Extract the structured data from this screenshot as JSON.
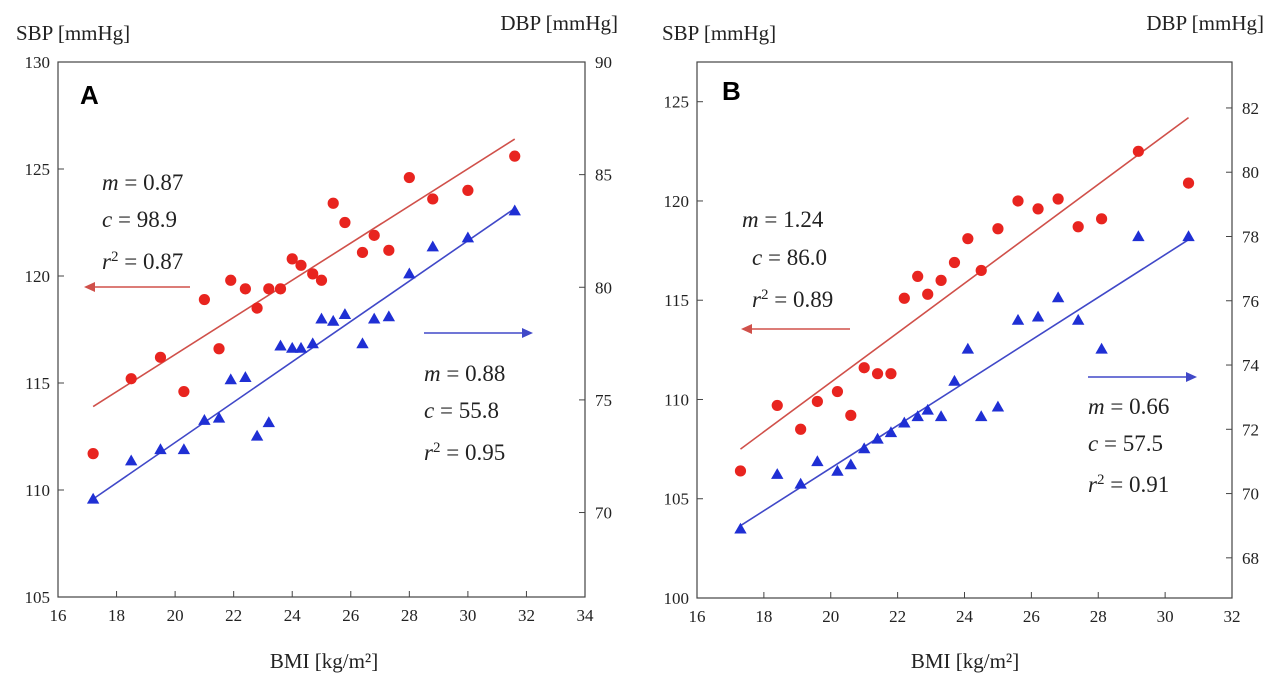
{
  "chart_data": [
    {
      "type": "scatter",
      "panel_label": "A",
      "xlabel": "BMI [kg/m²]",
      "ylabel_left": "SBP [mmHg]",
      "ylabel_right": "DBP [mmHg]",
      "xlim": [
        16,
        34
      ],
      "xticks": [
        16,
        18,
        20,
        22,
        24,
        26,
        28,
        30,
        32,
        34
      ],
      "ylim_left": [
        105,
        130
      ],
      "yticks_left": [
        105,
        110,
        115,
        120,
        125,
        130
      ],
      "ylim_right": [
        66.25,
        90
      ],
      "yticks_right": [
        70,
        75,
        80,
        85,
        90
      ],
      "colors": {
        "sbp": "#e8241f",
        "dbp": "#1f2fd4",
        "sbp_line": "#d0504a",
        "dbp_line": "#4048c8"
      },
      "series": [
        {
          "name": "SBP",
          "axis": "left",
          "marker": "circle",
          "x": [
            17.2,
            18.5,
            19.5,
            20.3,
            21.0,
            21.5,
            21.9,
            22.4,
            22.8,
            23.2,
            23.6,
            24.0,
            24.3,
            24.7,
            25.0,
            25.4,
            25.8,
            26.4,
            26.8,
            27.3,
            28.0,
            28.8,
            30.0,
            31.6
          ],
          "y": [
            111.7,
            115.2,
            116.2,
            114.6,
            118.9,
            116.6,
            119.8,
            119.4,
            118.5,
            119.4,
            119.4,
            120.8,
            120.5,
            120.1,
            119.8,
            123.4,
            122.5,
            121.1,
            121.9,
            121.2,
            124.6,
            123.6,
            124.0,
            125.6
          ],
          "fit": {
            "x": [
              17.2,
              31.6
            ],
            "y": [
              113.9,
              126.4
            ]
          }
        },
        {
          "name": "DBP",
          "axis": "right",
          "marker": "triangle",
          "x": [
            17.2,
            18.5,
            19.5,
            20.3,
            21.0,
            21.5,
            21.9,
            22.4,
            22.8,
            23.2,
            23.6,
            24.0,
            24.3,
            24.7,
            25.0,
            25.4,
            25.8,
            26.4,
            26.8,
            27.3,
            28.0,
            28.8,
            30.0,
            31.6
          ],
          "y": [
            70.6,
            72.3,
            72.8,
            72.8,
            74.1,
            74.2,
            75.9,
            76.0,
            73.4,
            74.0,
            77.4,
            77.3,
            77.3,
            77.5,
            78.6,
            78.5,
            78.8,
            77.5,
            78.6,
            78.7,
            80.6,
            81.8,
            82.2,
            83.4
          ],
          "fit": {
            "x": [
              17.2,
              31.6
            ],
            "y": [
              70.6,
              83.5
            ]
          }
        }
      ],
      "annotations": {
        "sbp": {
          "m": "0.87",
          "c": "98.9",
          "r2": "0.87"
        },
        "dbp": {
          "m": "0.88",
          "c": "55.8",
          "r2": "0.95"
        }
      }
    },
    {
      "type": "scatter",
      "panel_label": "B",
      "xlabel": "BMI [kg/m²]",
      "ylabel_left": "SBP [mmHg]",
      "ylabel_right": "DBP [mmHg]",
      "xlim": [
        16,
        32
      ],
      "xticks": [
        16,
        18,
        20,
        22,
        24,
        26,
        28,
        30,
        32
      ],
      "ylim_left": [
        100,
        127
      ],
      "yticks_left": [
        100,
        105,
        110,
        115,
        120,
        125
      ],
      "ylim_right": [
        66.75,
        83.43
      ],
      "yticks_right": [
        68,
        70,
        72,
        74,
        76,
        78,
        80,
        82
      ],
      "colors": {
        "sbp": "#e8241f",
        "dbp": "#1f2fd4",
        "sbp_line": "#d0504a",
        "dbp_line": "#4048c8"
      },
      "series": [
        {
          "name": "SBP",
          "axis": "left",
          "marker": "circle",
          "x": [
            17.3,
            18.4,
            19.1,
            19.6,
            20.2,
            20.6,
            21.0,
            21.4,
            21.8,
            22.2,
            22.6,
            22.9,
            23.3,
            23.7,
            24.1,
            24.5,
            25.0,
            25.6,
            26.2,
            26.8,
            27.4,
            28.1,
            29.2,
            30.7
          ],
          "y": [
            106.4,
            109.7,
            108.5,
            109.9,
            110.4,
            109.2,
            111.6,
            111.3,
            111.3,
            115.1,
            116.2,
            115.3,
            116.0,
            116.9,
            118.1,
            116.5,
            118.6,
            120.0,
            119.6,
            120.1,
            118.7,
            119.1,
            122.5,
            120.9
          ],
          "fit": {
            "x": [
              17.3,
              30.7
            ],
            "y": [
              107.5,
              124.2
            ]
          }
        },
        {
          "name": "DBP",
          "axis": "right",
          "marker": "triangle",
          "x": [
            17.3,
            18.4,
            19.1,
            19.6,
            20.2,
            20.6,
            21.0,
            21.4,
            21.8,
            22.2,
            22.6,
            22.9,
            23.3,
            23.7,
            24.1,
            24.5,
            25.0,
            25.6,
            26.2,
            26.8,
            27.4,
            28.1,
            29.2,
            30.7
          ],
          "y": [
            68.9,
            70.6,
            70.3,
            71.0,
            70.7,
            70.9,
            71.4,
            71.7,
            71.9,
            72.2,
            72.4,
            72.6,
            72.4,
            73.5,
            74.5,
            72.4,
            72.7,
            75.4,
            75.5,
            76.1,
            75.4,
            74.5,
            78.0,
            78.0
          ],
          "fit": {
            "x": [
              17.3,
              30.7
            ],
            "y": [
              69.0,
              77.9
            ]
          }
        }
      ],
      "annotations": {
        "sbp": {
          "m": "1.24",
          "c": "86.0",
          "r2": "0.89"
        },
        "dbp": {
          "m": "0.66",
          "c": "57.5",
          "r2": "0.91"
        }
      }
    }
  ]
}
